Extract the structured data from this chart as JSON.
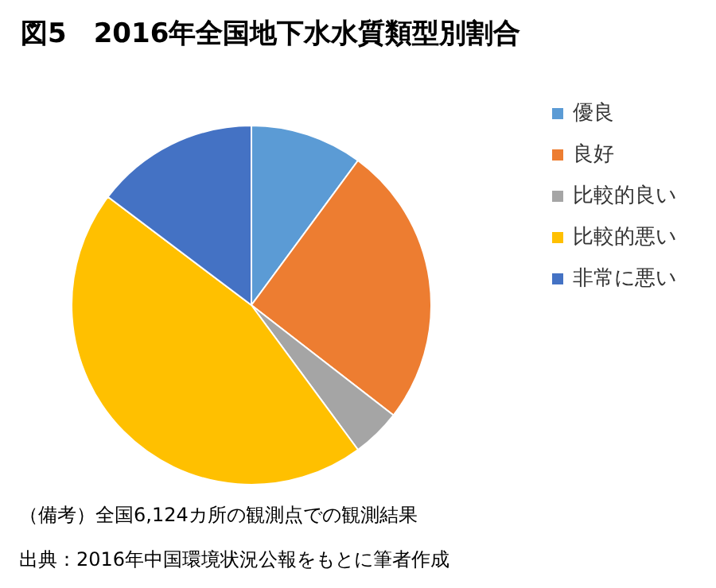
{
  "chart_data": {
    "type": "pie",
    "title": "図5　2016年全国地下水水質類型別割合",
    "categories": [
      "優良",
      "良好",
      "比較的良い",
      "比較的悪い",
      "非常に悪い"
    ],
    "values": [
      10.1,
      25.4,
      4.4,
      45.4,
      14.7
    ],
    "colors": [
      "#5b9bd5",
      "#ed7d31",
      "#a5a5a5",
      "#ffc000",
      "#4472c4"
    ],
    "legend": "right",
    "annotations": [
      "（備考）全国6,124カ所の観測点での観測結果",
      "出典：2016年中国環境状況公報をもとに筆者作成"
    ]
  }
}
